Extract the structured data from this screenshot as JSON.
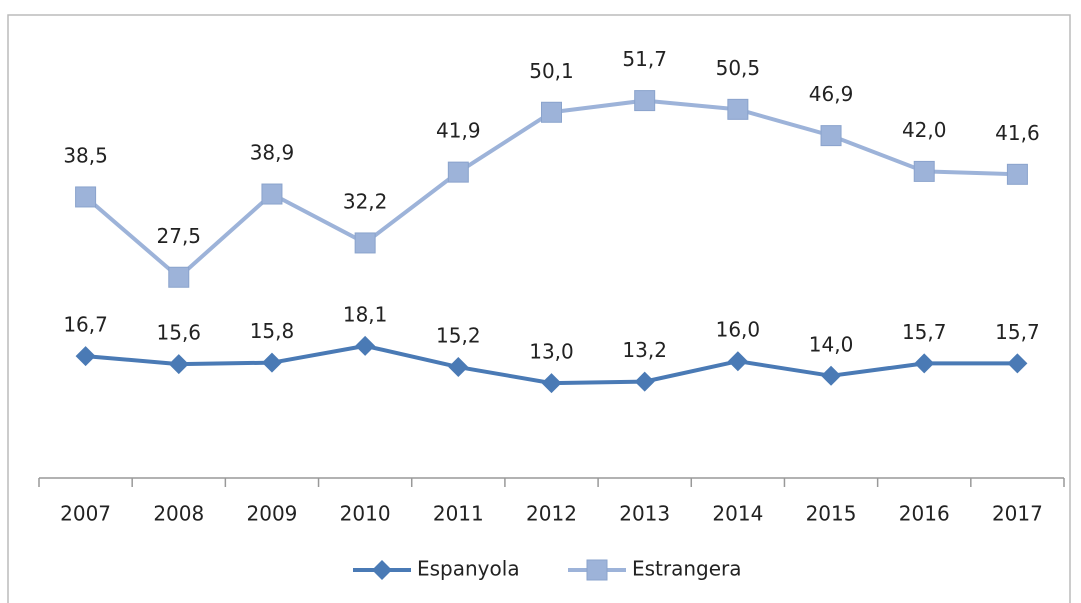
{
  "chart_data": {
    "type": "line",
    "categories": [
      "2007",
      "2008",
      "2009",
      "2010",
      "2011",
      "2012",
      "2013",
      "2014",
      "2015",
      "2016",
      "2017"
    ],
    "series": [
      {
        "name": "Espanyola",
        "color": "#4a7ab5",
        "marker": "diamond",
        "values": [
          16.7,
          15.6,
          15.8,
          18.1,
          15.2,
          13.0,
          13.2,
          16.0,
          14.0,
          15.7,
          15.7
        ],
        "value_labels": [
          "16,7",
          "15,6",
          "15,8",
          "18,1",
          "15,2",
          "13,0",
          "13,2",
          "16,0",
          "14,0",
          "15,7",
          "15,7"
        ]
      },
      {
        "name": "Estrangera",
        "color": "#9db3d9",
        "marker": "square",
        "values": [
          38.5,
          27.5,
          38.9,
          32.2,
          41.9,
          50.1,
          51.7,
          50.5,
          46.9,
          42.0,
          41.6
        ],
        "value_labels": [
          "38,5",
          "27,5",
          "38,9",
          "32,2",
          "41,9",
          "50,1",
          "51,7",
          "50,5",
          "46,9",
          "42,0",
          "41,6"
        ]
      }
    ],
    "ylim": [
      0,
      60
    ],
    "legend": "bottom"
  }
}
